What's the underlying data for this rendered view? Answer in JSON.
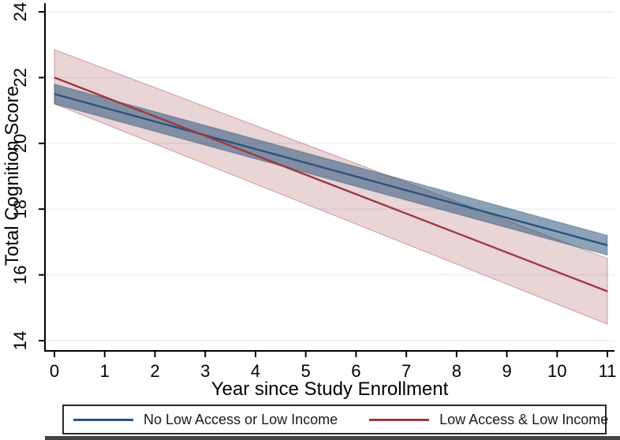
{
  "figure": {
    "background": "#ffffff",
    "kind": "confidence-band line chart"
  },
  "chart_data": {
    "type": "line",
    "title": "",
    "xlabel": "Year since Study Enrollment",
    "ylabel": "Total Cognition Score",
    "xlim": [
      -0.2,
      11.15
    ],
    "ylim": [
      13.7,
      24.3
    ],
    "xticks": [
      0,
      1,
      2,
      3,
      4,
      5,
      6,
      7,
      8,
      9,
      10,
      11
    ],
    "yticks": [
      14,
      16,
      18,
      20,
      22,
      24
    ],
    "grid": "horizontal-only",
    "gridline_color": "#e8eff1",
    "axis_color": "#000000",
    "legend_position": "bottom-center",
    "series": [
      {
        "name": "No Low Access or Low Income",
        "color": "#2a5480",
        "band_fill": "rgba(26,71,111,0.5)",
        "band_edge": "rgba(26,71,111,0.35)",
        "x": [
          0,
          11
        ],
        "y": [
          21.5,
          16.9
        ],
        "ci_upper": [
          21.8,
          17.2
        ],
        "ci_lower": [
          21.2,
          16.6
        ]
      },
      {
        "name": "Low Access & Low Income",
        "color": "#9c3a40",
        "band_fill": "rgba(150,50,60,0.21)",
        "band_edge": "rgba(150,50,60,0.35)",
        "x": [
          0,
          11
        ],
        "y": [
          22.0,
          15.5
        ],
        "ci_upper": [
          22.85,
          16.5
        ],
        "ci_lower": [
          21.2,
          14.5
        ]
      }
    ]
  },
  "legend": {
    "items": [
      {
        "label": "No Low Access or Low Income",
        "color": "#2a5480"
      },
      {
        "label": "Low Access & Low Income",
        "color": "#9c3a40"
      }
    ]
  }
}
